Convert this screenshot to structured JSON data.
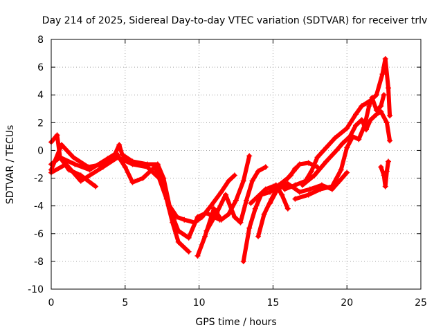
{
  "chart_data": {
    "type": "scatter",
    "title": "Day 214 of 2025, Sidereal Day-to-day VTEC variation (SDTVAR) for receiver trlv",
    "xlabel": "GPS time / hours",
    "ylabel": "SDTVAR / TECUs",
    "xlim": [
      0,
      25
    ],
    "ylim": [
      -10,
      8
    ],
    "xticks": [
      0,
      5,
      10,
      15,
      20,
      25
    ],
    "yticks": [
      -10,
      -8,
      -6,
      -4,
      -2,
      0,
      2,
      4,
      6,
      8
    ],
    "grid": true,
    "marker": "plus",
    "color": "#ff0000",
    "series": [
      {
        "points": [
          [
            0,
            0.6
          ],
          [
            0.4,
            1.1
          ],
          [
            0.6,
            -0.5
          ],
          [
            1.2,
            -1.4
          ],
          [
            2,
            -1.8
          ],
          [
            3,
            -2.6
          ]
        ]
      },
      {
        "points": [
          [
            0,
            -1.4
          ],
          [
            0.7,
            0.4
          ],
          [
            1.5,
            -0.5
          ],
          [
            2.5,
            -1.2
          ],
          [
            3.5,
            -1.0
          ],
          [
            4.3,
            -0.3
          ],
          [
            4.6,
            0.4
          ],
          [
            4.8,
            -0.3
          ],
          [
            5.5,
            -0.8
          ],
          [
            6.5,
            -1.0
          ],
          [
            7.2,
            -1.0
          ],
          [
            7.6,
            -2.0
          ],
          [
            8,
            -4.0
          ],
          [
            8.5,
            -4.8
          ],
          [
            9,
            -5.0
          ],
          [
            9.7,
            -5.2
          ],
          [
            10.2,
            -4.8
          ],
          [
            10.8,
            -4.0
          ],
          [
            11.5,
            -3.0
          ],
          [
            12,
            -2.2
          ],
          [
            12.4,
            -1.8
          ]
        ]
      },
      {
        "points": [
          [
            0,
            -1.0
          ],
          [
            0.6,
            -0.5
          ],
          [
            1.6,
            -1.0
          ],
          [
            2.6,
            -1.4
          ],
          [
            3.8,
            -0.6
          ],
          [
            4.4,
            -0.2
          ],
          [
            5,
            -1.2
          ],
          [
            5.5,
            -2.3
          ],
          [
            6.2,
            -2.0
          ],
          [
            7,
            -1.2
          ],
          [
            7.4,
            -2.0
          ],
          [
            8,
            -4.2
          ],
          [
            8.6,
            -5.8
          ],
          [
            9.3,
            -6.3
          ],
          [
            9.9,
            -4.8
          ],
          [
            10.5,
            -4.5
          ],
          [
            11,
            -4.8
          ],
          [
            11.4,
            -5.0
          ]
        ]
      },
      {
        "points": [
          [
            0,
            -1.6
          ],
          [
            1,
            -1.0
          ],
          [
            2,
            -2.2
          ],
          [
            3.5,
            -1.2
          ],
          [
            4.5,
            -0.5
          ],
          [
            5.5,
            -1.0
          ],
          [
            6.5,
            -1.2
          ],
          [
            7.3,
            -2.0
          ],
          [
            7.8,
            -3.5
          ],
          [
            8.2,
            -5.2
          ],
          [
            8.6,
            -6.6
          ],
          [
            9.3,
            -7.3
          ]
        ]
      },
      {
        "points": [
          [
            9.9,
            -7.6
          ],
          [
            10.4,
            -6.2
          ],
          [
            11,
            -4.2
          ],
          [
            11.5,
            -5.0
          ],
          [
            12,
            -4.6
          ],
          [
            12.5,
            -3.6
          ],
          [
            13,
            -2.2
          ],
          [
            13.4,
            -0.4
          ]
        ]
      },
      {
        "points": [
          [
            10.5,
            -5.8
          ],
          [
            11.2,
            -4.5
          ],
          [
            11.8,
            -3.2
          ],
          [
            12.4,
            -4.8
          ],
          [
            12.8,
            -5.2
          ],
          [
            13.2,
            -3.6
          ],
          [
            13.6,
            -2.2
          ],
          [
            14,
            -1.5
          ],
          [
            14.5,
            -1.2
          ]
        ]
      },
      {
        "points": [
          [
            13,
            -8.0
          ],
          [
            13.4,
            -5.6
          ],
          [
            13.8,
            -4.2
          ],
          [
            14.2,
            -3.2
          ],
          [
            14.8,
            -3.0
          ],
          [
            15.3,
            -2.6
          ],
          [
            15.8,
            -2.2
          ],
          [
            16.2,
            -1.8
          ],
          [
            16.5,
            -1.3
          ]
        ]
      },
      {
        "points": [
          [
            14,
            -6.2
          ],
          [
            14.4,
            -4.6
          ],
          [
            14.9,
            -3.5
          ],
          [
            15.4,
            -2.5
          ],
          [
            16,
            -2.0
          ],
          [
            16.4,
            -1.5
          ],
          [
            16.8,
            -1.0
          ],
          [
            17.4,
            -0.9
          ],
          [
            18,
            -1.2
          ]
        ]
      },
      {
        "points": [
          [
            14.8,
            -3.8
          ],
          [
            15.3,
            -2.8
          ],
          [
            16,
            -2.4
          ],
          [
            16.8,
            -3.0
          ],
          [
            17.5,
            -2.8
          ],
          [
            18.3,
            -2.5
          ],
          [
            19,
            -2.8
          ],
          [
            19.5,
            -2.2
          ],
          [
            20,
            -1.6
          ]
        ]
      },
      {
        "points": [
          [
            13.5,
            -3.8
          ],
          [
            14.5,
            -2.8
          ],
          [
            15.2,
            -2.5
          ],
          [
            15.6,
            -3.2
          ],
          [
            16,
            -4.2
          ]
        ]
      },
      {
        "points": [
          [
            15.8,
            -2.8
          ],
          [
            16.5,
            -2.5
          ],
          [
            17.2,
            -2.2
          ],
          [
            17.6,
            -1.5
          ],
          [
            18,
            -0.5
          ],
          [
            18.6,
            0.2
          ],
          [
            19.2,
            0.9
          ],
          [
            20,
            1.6
          ],
          [
            20.6,
            2.6
          ],
          [
            21,
            3.2
          ],
          [
            21.6,
            3.6
          ],
          [
            22,
            4.0
          ],
          [
            22.4,
            5.5
          ],
          [
            22.6,
            6.6
          ],
          [
            22.8,
            4.5
          ],
          [
            22.9,
            2.5
          ]
        ]
      },
      {
        "points": [
          [
            17,
            -2.5
          ],
          [
            17.8,
            -1.8
          ],
          [
            18.6,
            -0.8
          ],
          [
            19.3,
            0.0
          ],
          [
            19.7,
            0.5
          ],
          [
            20.2,
            1.0
          ],
          [
            20.6,
            1.8
          ],
          [
            21,
            2.2
          ],
          [
            21.3,
            1.5
          ],
          [
            21.6,
            2.2
          ],
          [
            22,
            2.6
          ],
          [
            22.3,
            2.8
          ],
          [
            22.7,
            2.0
          ],
          [
            22.9,
            0.7
          ]
        ]
      },
      {
        "points": [
          [
            16.5,
            -3.5
          ],
          [
            17.4,
            -3.2
          ],
          [
            18.2,
            -2.8
          ],
          [
            19,
            -2.6
          ],
          [
            19.6,
            -1.4
          ],
          [
            20,
            0.2
          ],
          [
            20.4,
            1.0
          ],
          [
            20.8,
            0.8
          ],
          [
            21.2,
            1.8
          ],
          [
            21.5,
            3.2
          ],
          [
            21.7,
            3.8
          ],
          [
            22,
            2.9
          ],
          [
            22.3,
            3.2
          ],
          [
            22.5,
            4.0
          ]
        ]
      },
      {
        "points": [
          [
            22.3,
            -1.2
          ],
          [
            22.5,
            -1.8
          ],
          [
            22.6,
            -2.6
          ],
          [
            22.7,
            -1.5
          ],
          [
            22.8,
            -0.8
          ]
        ]
      }
    ]
  }
}
